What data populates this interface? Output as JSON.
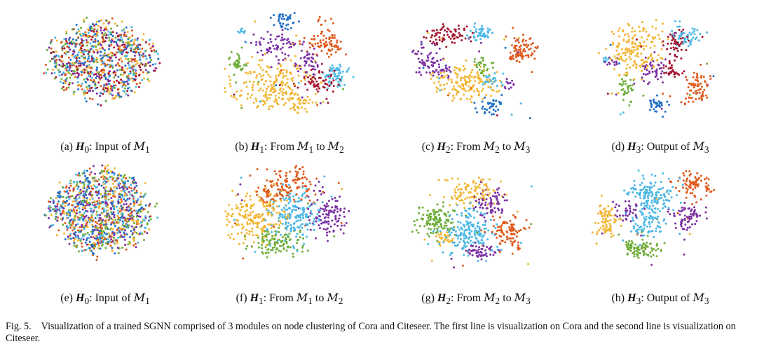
{
  "colors": {
    "purple": "#7b2fa3",
    "yellow": "#f2b531",
    "orange": "#e0591c",
    "blue": "#1f6fc4",
    "lightblue": "#4bb7e6",
    "green": "#6fad3a",
    "red": "#a4142f"
  },
  "panels": [
    {
      "id": "a",
      "label": "(a)",
      "math": "H",
      "sub": "0",
      "text": ": Input of ",
      "m1": "M",
      "m1sub": "1",
      "mid": "",
      "m2": "",
      "m2sub": ""
    },
    {
      "id": "b",
      "label": "(b)",
      "math": "H",
      "sub": "1",
      "text": ": From ",
      "m1": "M",
      "m1sub": "1",
      "mid": " to ",
      "m2": "M",
      "m2sub": "2"
    },
    {
      "id": "c",
      "label": "(c)",
      "math": "H",
      "sub": "2",
      "text": ": From ",
      "m1": "M",
      "m1sub": "2",
      "mid": " to ",
      "m2": "M",
      "m2sub": "3"
    },
    {
      "id": "d",
      "label": "(d)",
      "math": "H",
      "sub": "3",
      "text": ": Output of ",
      "m1": "M",
      "m1sub": "3",
      "mid": "",
      "m2": "",
      "m2sub": ""
    },
    {
      "id": "e",
      "label": "(e)",
      "math": "H",
      "sub": "0",
      "text": ": Input of ",
      "m1": "M",
      "m1sub": "1",
      "mid": "",
      "m2": "",
      "m2sub": ""
    },
    {
      "id": "f",
      "label": "(f)",
      "math": "H",
      "sub": "1",
      "text": ": From ",
      "m1": "M",
      "m1sub": "1",
      "mid": " to ",
      "m2": "M",
      "m2sub": "2"
    },
    {
      "id": "g",
      "label": "(g)",
      "math": "H",
      "sub": "2",
      "text": ": From ",
      "m1": "M",
      "m1sub": "2",
      "mid": " to ",
      "m2": "M",
      "m2sub": "3"
    },
    {
      "id": "h",
      "label": "(h)",
      "math": "H",
      "sub": "3",
      "text": ": Output of ",
      "m1": "M",
      "m1sub": "3",
      "mid": "",
      "m2": "",
      "m2sub": ""
    }
  ],
  "figure_caption": {
    "number": "Fig. 5.",
    "text": "Visualization of a trained SGNN comprised of 3 modules on node clustering of Cora and Citeseer. The first line is visualization on Cora and the second line is visualization on Citeseer."
  }
}
